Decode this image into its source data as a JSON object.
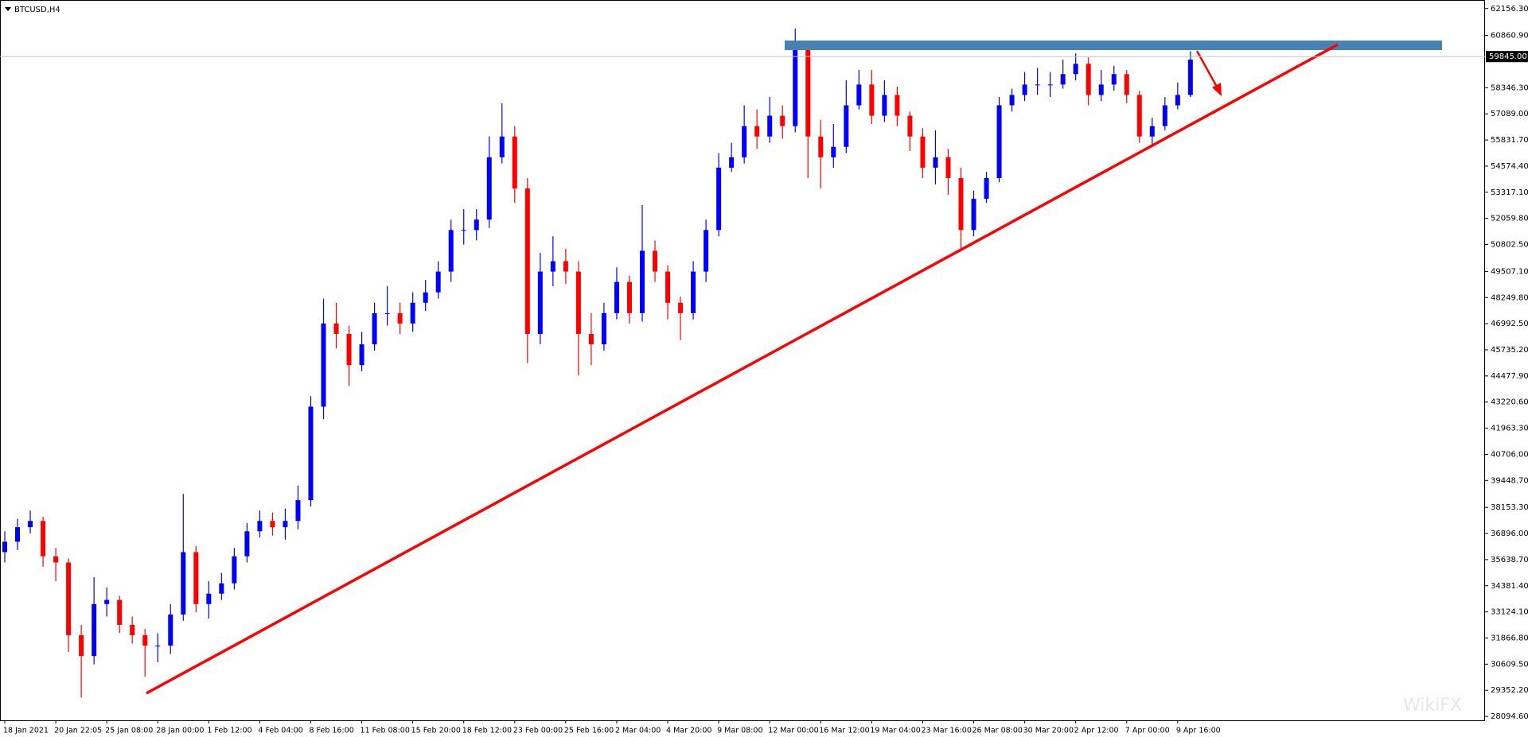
{
  "chart_data": {
    "type": "candlestick",
    "title": "BTCUSD,H4",
    "categories": [
      "18 Jan 2021",
      null,
      null,
      null,
      "20 Jan 22:05",
      null,
      null,
      null,
      "25 Jan 08:00",
      null,
      null,
      null,
      "28 Jan 00:00",
      null,
      null,
      null,
      "1 Feb 12:00",
      null,
      null,
      null,
      "4 Feb 04:00",
      null,
      null,
      null,
      "8 Feb 16:00",
      null,
      null,
      null,
      "11 Feb 08:00",
      null,
      null,
      null,
      "15 Feb 20:00",
      null,
      null,
      null,
      "18 Feb 12:00",
      null,
      null,
      null,
      "23 Feb 00:00",
      null,
      null,
      null,
      "25 Feb 16:00",
      null,
      null,
      null,
      "2 Mar 04:00",
      null,
      null,
      null,
      "4 Mar 20:00",
      null,
      null,
      null,
      "9 Mar 08:00",
      null,
      null,
      null,
      "12 Mar 00:00",
      null,
      null,
      null,
      "16 Mar 12:00",
      null,
      null,
      null,
      "19 Mar 04:00",
      null,
      null,
      null,
      "23 Mar 16:00",
      null,
      null,
      null,
      "26 Mar 08:00",
      null,
      null,
      null,
      "30 Mar 20:00",
      null,
      null,
      null,
      "2 Apr 12:00",
      null,
      null,
      null,
      "7 Apr 00:00",
      null,
      null,
      null,
      "9 Apr 16:00",
      null
    ],
    "open": [
      36000,
      36500,
      37200,
      37500,
      35800,
      35500,
      32000,
      31000,
      33500,
      33700,
      32500,
      32000,
      31500,
      31500,
      33000,
      36000,
      33500,
      34000,
      34500,
      35800,
      37000,
      37500,
      37200,
      37500,
      38500,
      43000,
      47000,
      46500,
      45000,
      46000,
      47500,
      47500,
      47000,
      48000,
      48500,
      49500,
      51500,
      51500,
      52000,
      55000,
      56000,
      53500,
      46500,
      49500,
      50000,
      49500,
      46500,
      46000,
      47500,
      49000,
      47500,
      50500,
      49500,
      48000,
      47500,
      49500,
      51500,
      54500,
      55000,
      56500,
      56000,
      57000,
      56500,
      60500,
      56000,
      55000,
      55500,
      57500,
      58500,
      57000,
      58000,
      57000,
      56000,
      54500,
      55000,
      54000,
      51500,
      53000,
      54000,
      57500,
      58000,
      58500,
      58500,
      58500,
      59000,
      59500,
      58000,
      58500,
      59000,
      58000,
      56000,
      56500,
      57500,
      58000
    ],
    "high": [
      37000,
      37600,
      38000,
      37700,
      36200,
      35700,
      32500,
      34800,
      34300,
      33900,
      32900,
      32300,
      32100,
      33500,
      38800,
      36300,
      34600,
      35000,
      36200,
      37400,
      38000,
      37900,
      38100,
      39200,
      43500,
      48200,
      48000,
      46900,
      46600,
      48000,
      48800,
      48000,
      48500,
      49100,
      50000,
      52000,
      52500,
      52500,
      56000,
      57600,
      56500,
      54000,
      50400,
      51200,
      50600,
      50000,
      47500,
      48000,
      49700,
      49300,
      52700,
      51000,
      49800,
      48300,
      50000,
      52000,
      55200,
      55700,
      57500,
      57300,
      57900,
      57500,
      61200,
      60600,
      56800,
      56600,
      58700,
      59200,
      59200,
      58700,
      58400,
      57200,
      56400,
      56300,
      55400,
      54500,
      53400,
      54300,
      57900,
      58300,
      59100,
      59300,
      59100,
      59700,
      60000,
      59800,
      59200,
      59400,
      59200,
      58200,
      56900,
      57900,
      58600,
      60100
    ],
    "low": [
      35500,
      36100,
      36900,
      35300,
      34600,
      31200,
      29000,
      30600,
      32900,
      32100,
      31600,
      30000,
      30700,
      31100,
      32700,
      33100,
      32800,
      33700,
      34200,
      35500,
      36700,
      36800,
      36600,
      37100,
      38200,
      42400,
      45800,
      44000,
      44700,
      45700,
      46900,
      46500,
      46600,
      47600,
      48200,
      49000,
      50800,
      51000,
      51600,
      54700,
      52800,
      45100,
      46000,
      48800,
      48900,
      44500,
      45000,
      45700,
      47200,
      47000,
      47100,
      49000,
      47200,
      46200,
      47200,
      49000,
      51200,
      54300,
      54700,
      55400,
      55700,
      55900,
      56200,
      54000,
      53500,
      54500,
      55200,
      57300,
      56600,
      56700,
      56500,
      55300,
      54000,
      53700,
      53200,
      50500,
      51200,
      52800,
      53800,
      57200,
      57700,
      58000,
      57900,
      58300,
      58700,
      57500,
      57700,
      58200,
      57600,
      55700,
      55600,
      56300,
      57300,
      57900
    ],
    "close": [
      36500,
      37200,
      37500,
      35800,
      35500,
      32000,
      31000,
      33500,
      33700,
      32500,
      32000,
      31500,
      31500,
      33000,
      36000,
      33500,
      34000,
      34500,
      35800,
      37000,
      37500,
      37200,
      37500,
      38500,
      43000,
      47000,
      46500,
      45000,
      46000,
      47500,
      47500,
      47000,
      48000,
      48500,
      49500,
      51500,
      51500,
      52000,
      55000,
      56000,
      53500,
      46500,
      49500,
      50000,
      49500,
      46500,
      46000,
      47500,
      49000,
      47500,
      50500,
      49500,
      48000,
      47500,
      49500,
      51500,
      54500,
      55000,
      56500,
      56000,
      57000,
      56500,
      60500,
      56000,
      55000,
      55500,
      57500,
      58500,
      57000,
      58000,
      57000,
      56000,
      54500,
      55000,
      54000,
      51500,
      53000,
      54000,
      57500,
      58000,
      58500,
      58500,
      58500,
      59000,
      59500,
      58000,
      58500,
      59000,
      58000,
      56000,
      56500,
      57500,
      58000,
      59700
    ],
    "up_color": "#0000ff",
    "down_color": "#ff0000",
    "ylim": [
      27907,
      62530
    ],
    "yticks": [
      {
        "value": 62156.3,
        "label": "62156.30"
      },
      {
        "value": 60860.9,
        "label": "60860.90"
      },
      {
        "value": 58346.3,
        "label": "58346.30"
      },
      {
        "value": 57089,
        "label": "57089.00"
      },
      {
        "value": 55831.7,
        "label": "55831.70"
      },
      {
        "value": 54574.4,
        "label": "54574.40"
      },
      {
        "value": 53317.1,
        "label": "53317.10"
      },
      {
        "value": 52059.8,
        "label": "52059.80"
      },
      {
        "value": 50802.5,
        "label": "50802.50"
      },
      {
        "value": 49507.1,
        "label": "49507.10"
      },
      {
        "value": 48249.8,
        "label": "48249.80"
      },
      {
        "value": 46992.5,
        "label": "46992.50"
      },
      {
        "value": 45735.2,
        "label": "45735.20"
      },
      {
        "value": 44477.9,
        "label": "44477.90"
      },
      {
        "value": 43220.6,
        "label": "43220.60"
      },
      {
        "value": 41963.3,
        "label": "41963.30"
      },
      {
        "value": 40706,
        "label": "40706.00"
      },
      {
        "value": 39448.7,
        "label": "39448.70"
      },
      {
        "value": 38153.3,
        "label": "38153.30"
      },
      {
        "value": 36896,
        "label": "36896.00"
      },
      {
        "value": 35638.7,
        "label": "35638.70"
      },
      {
        "value": 34381.4,
        "label": "34381.40"
      },
      {
        "value": 33124.1,
        "label": "33124.10"
      },
      {
        "value": 31866.8,
        "label": "31866.80"
      },
      {
        "value": 30609.5,
        "label": "30609.50"
      },
      {
        "value": 29352.2,
        "label": "29352.20"
      },
      {
        "value": 28094.6,
        "label": "28094.60"
      }
    ],
    "current_price": {
      "value": 59845,
      "label": "59845.00"
    },
    "watermark": "WikiFX"
  }
}
